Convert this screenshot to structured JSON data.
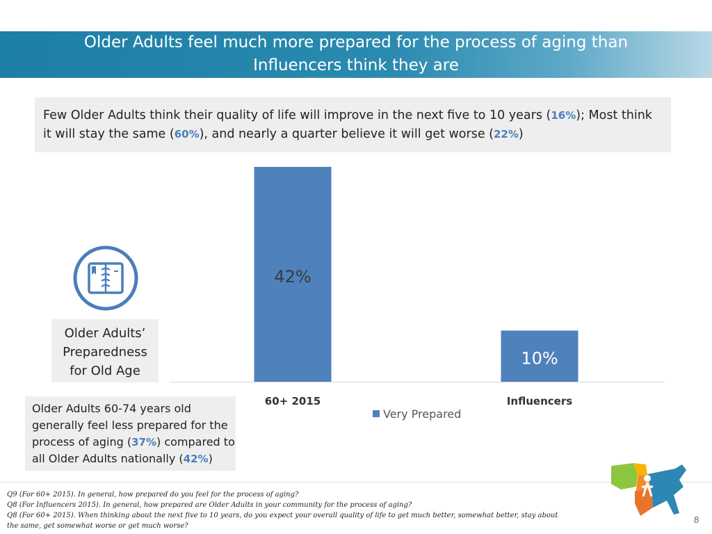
{
  "title": {
    "line1": "Older Adults feel much more prepared for the process of aging than",
    "line2": "Influencers think they are"
  },
  "summary": {
    "t1": "Few Older Adults think their quality of life will improve in the next five to 10 years (",
    "v1": "16%",
    "t2": "); Most think it will stay the same (",
    "v2": "60%",
    "t3": "), and nearly a quarter believe it will get worse (",
    "v3": "22%",
    "t4": ")"
  },
  "preparedness_label": [
    "Older Adults’",
    "Preparedness",
    "for Old Age"
  ],
  "note": {
    "t1": "Older Adults 60-74 years old generally feel less prepared for the process of aging (",
    "v1": "37%",
    "t2": ") compared to all Older Adults nationally (",
    "v2": "42%",
    "t3": ")"
  },
  "chart_data": {
    "type": "bar",
    "categories": [
      "60+ 2015",
      "Influencers"
    ],
    "series": [
      {
        "name": "Very Prepared",
        "values": [
          42,
          10
        ]
      }
    ],
    "data_labels": [
      "42%",
      "10%"
    ],
    "ylim": [
      0,
      42
    ],
    "legend": "bottom",
    "bar_color": "#4f81bd"
  },
  "footnotes": [
    "Q9 (For 60+ 2015). In general, how prepared do you feel for the process of aging?",
    "Q8 (For Influencers 2015). In general, how prepared are Older Adults in your community for the process of aging?",
    "Q8 (For 60+ 2015). When thinking about the next five to 10 years, do you expect your overall quality of life to get much better, somewhat better, stay about",
    "the same, get somewhat worse or get much worse?"
  ],
  "page_number": "8",
  "colors": {
    "accent": "#1d7fa6",
    "highlight": "#4a7ebb",
    "panel": "#eeeeee"
  },
  "icons": {
    "preparedness": "planner-book-icon",
    "logo": "us-map-logo-icon"
  }
}
